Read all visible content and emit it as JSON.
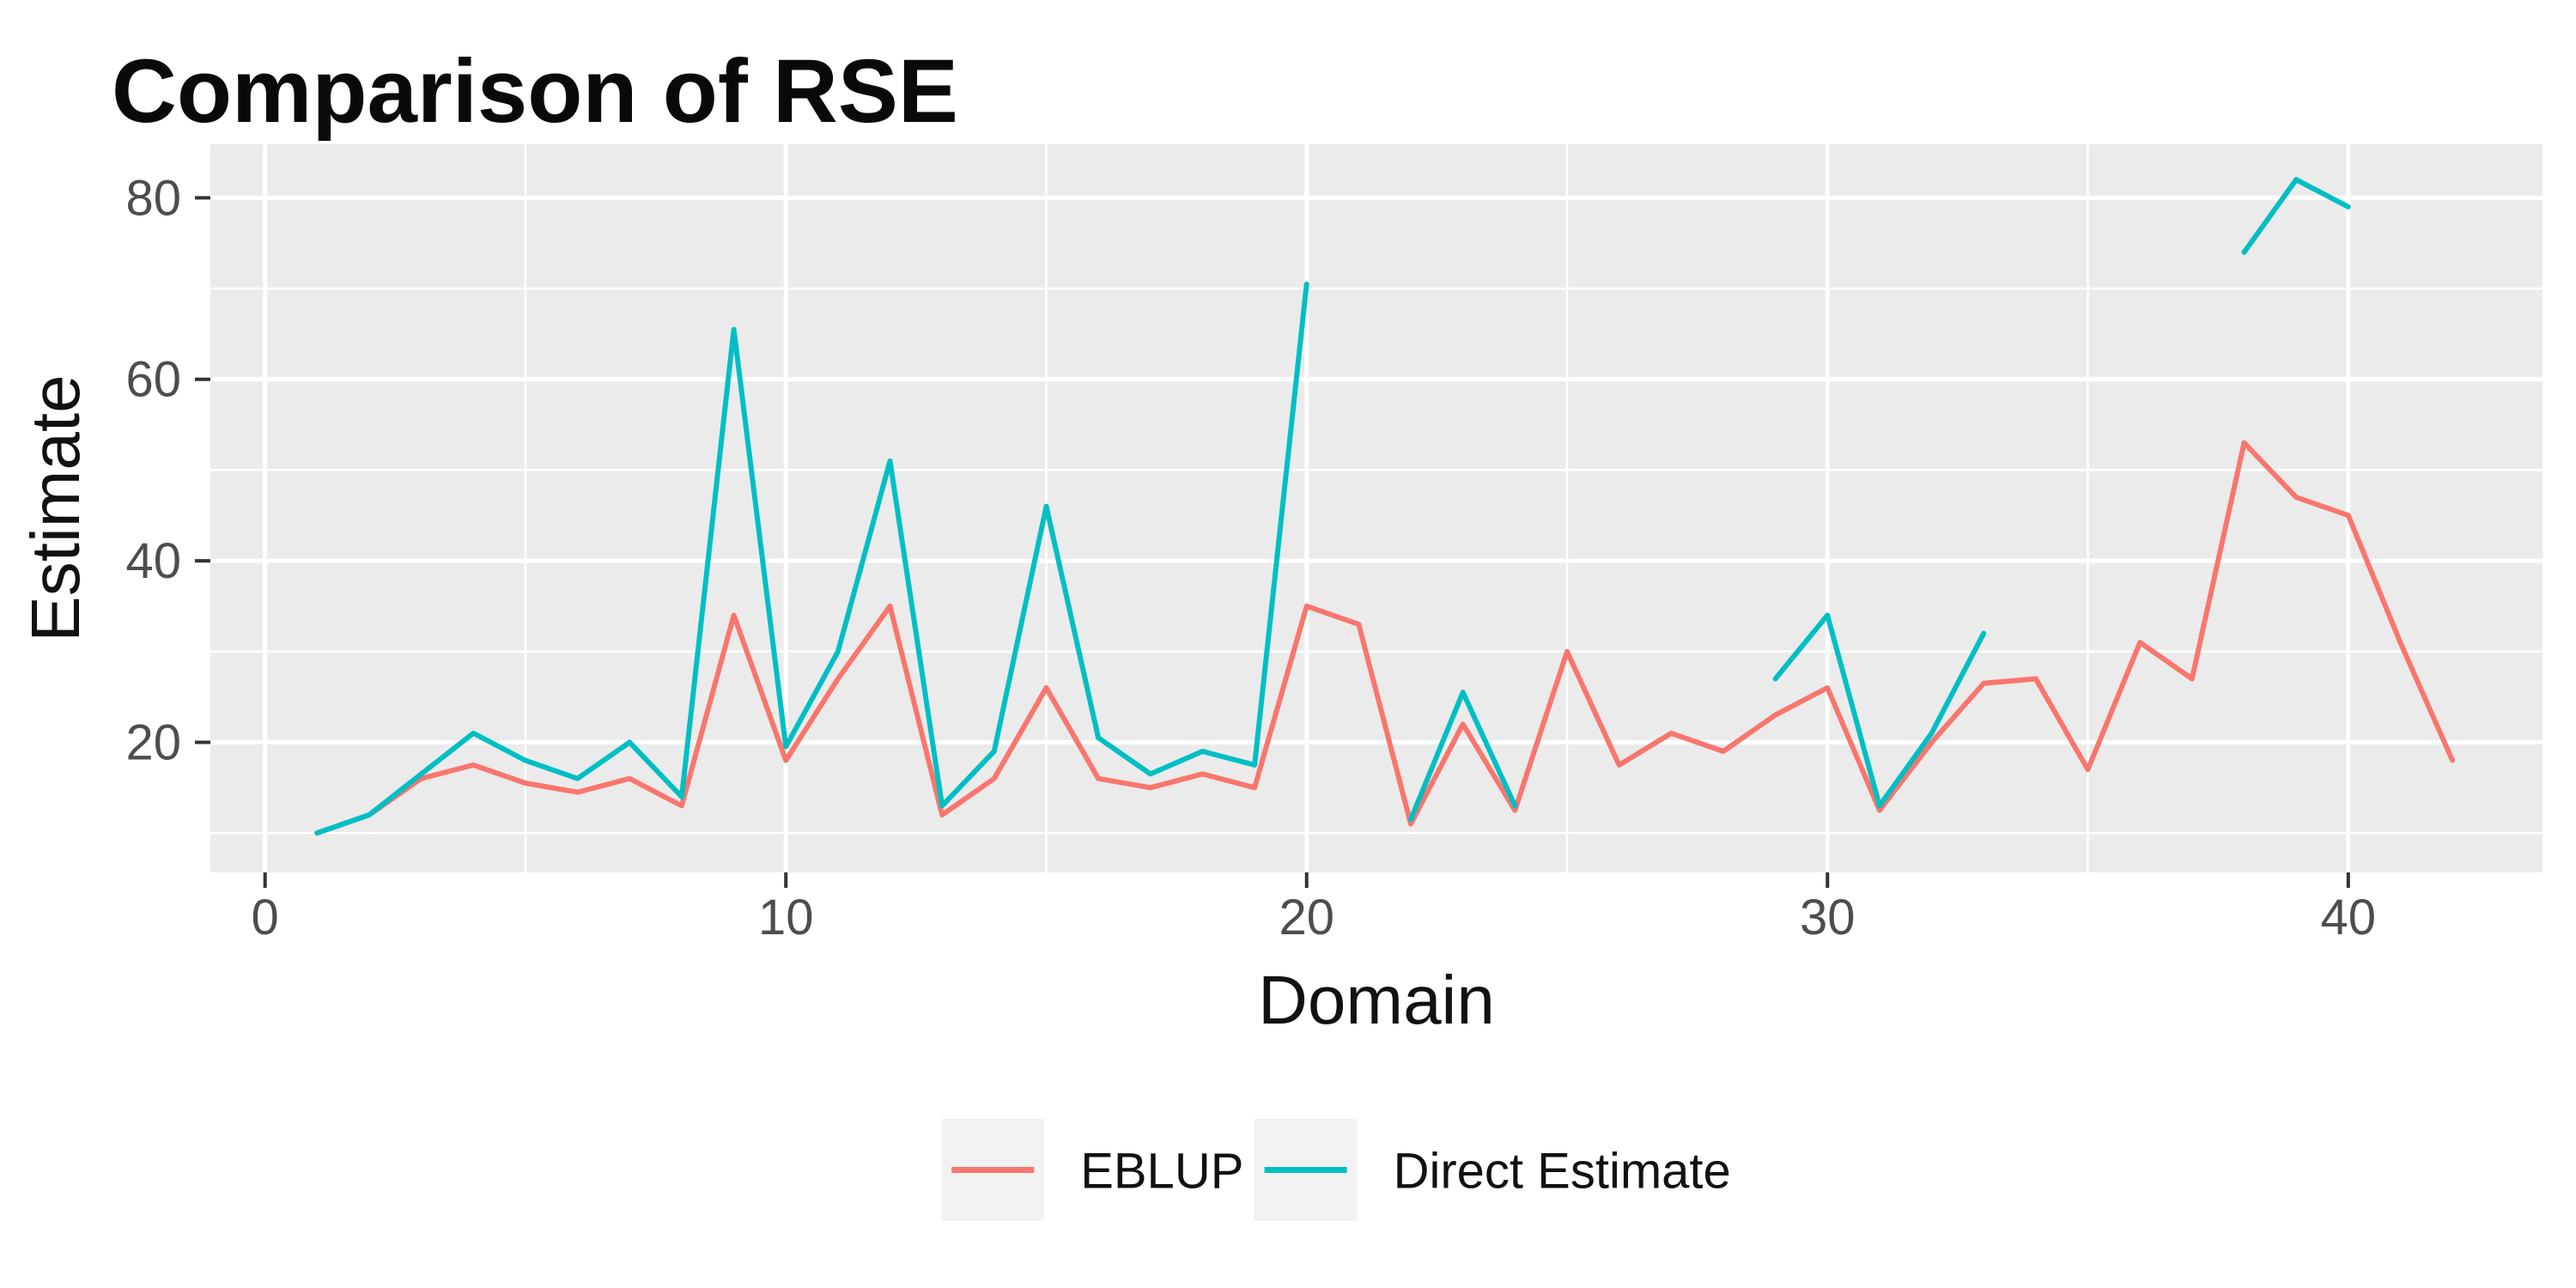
{
  "chart_data": {
    "type": "line",
    "title": "Comparison of RSE",
    "xlabel": "Domain",
    "ylabel": "Estimate",
    "legend_position": "bottom",
    "grid": "on",
    "x": [
      1,
      2,
      3,
      4,
      5,
      6,
      7,
      8,
      9,
      10,
      11,
      12,
      13,
      14,
      15,
      16,
      17,
      18,
      19,
      20,
      21,
      22,
      23,
      24,
      25,
      26,
      27,
      28,
      29,
      30,
      31,
      32,
      33,
      34,
      35,
      36,
      37,
      38,
      39,
      40,
      41,
      42
    ],
    "series": [
      {
        "name": "EBLUP",
        "color": "#F8766D",
        "values": [
          10,
          12,
          16,
          17.5,
          15.5,
          14.5,
          16,
          13,
          34,
          18,
          27,
          35,
          12,
          16,
          26,
          16,
          15,
          16.5,
          15,
          35,
          33,
          11,
          22,
          12.5,
          30,
          17.5,
          21,
          19,
          23,
          26,
          12.5,
          20,
          26.5,
          27,
          17,
          31,
          27,
          53,
          47,
          45,
          31,
          18
        ]
      },
      {
        "name": "Direct Estimate",
        "color": "#00BFC4",
        "values": [
          10,
          12,
          16.5,
          21,
          18,
          16,
          20,
          14,
          65.5,
          19.5,
          30,
          51,
          13,
          19,
          46,
          20.5,
          16.5,
          19,
          17.5,
          70.5,
          null,
          11.5,
          25.5,
          13,
          null,
          null,
          null,
          null,
          27,
          34,
          13,
          21,
          32,
          null,
          null,
          null,
          null,
          74,
          82,
          79,
          null,
          null
        ]
      }
    ],
    "x_ticks": [
      0,
      10,
      20,
      30,
      40
    ],
    "y_ticks": [
      20,
      40,
      60,
      80
    ],
    "x_minor_ticks": [
      5,
      15,
      25,
      35
    ],
    "y_minor_ticks": [
      10,
      30,
      50,
      70
    ],
    "xlim": [
      -1.05,
      43.73
    ],
    "ylim": [
      5.66,
      85.9
    ]
  },
  "theme": {
    "panel_background": "#EBEBEB",
    "grid_color": "#FFFFFF",
    "tick_mark_color": "#333333",
    "tick_label_color": "#4D4D4D",
    "axis_title_color": "#111111",
    "title_color": "#0A0A0A",
    "legend_key_fill": "#F2F2F2",
    "legend_text_color": "#111111"
  }
}
